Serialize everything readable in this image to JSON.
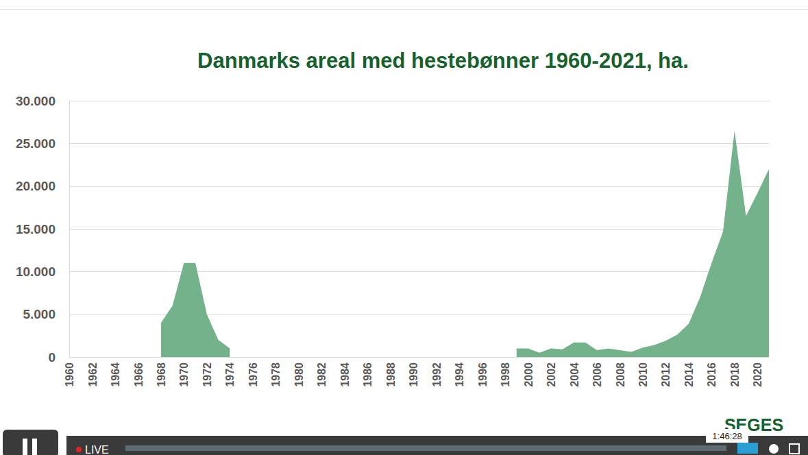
{
  "chart_data": {
    "type": "area",
    "title": "Danmarks areal med hestebønner 1960-2021, ha.",
    "x": [
      1960,
      1961,
      1962,
      1963,
      1964,
      1965,
      1966,
      1967,
      1968,
      1969,
      1970,
      1971,
      1972,
      1973,
      1974,
      1975,
      1976,
      1977,
      1978,
      1979,
      1980,
      1981,
      1982,
      1983,
      1984,
      1985,
      1986,
      1987,
      1988,
      1989,
      1990,
      1991,
      1992,
      1993,
      1994,
      1995,
      1996,
      1997,
      1998,
      1999,
      2000,
      2001,
      2002,
      2003,
      2004,
      2005,
      2006,
      2007,
      2008,
      2009,
      2010,
      2011,
      2012,
      2013,
      2014,
      2015,
      2016,
      2017,
      2018,
      2019,
      2020,
      2021
    ],
    "values": [
      null,
      null,
      null,
      null,
      null,
      null,
      null,
      null,
      4000,
      6000,
      11000,
      11000,
      5000,
      2000,
      1000,
      null,
      null,
      null,
      null,
      null,
      null,
      null,
      null,
      null,
      null,
      null,
      null,
      null,
      null,
      null,
      null,
      null,
      null,
      null,
      null,
      null,
      null,
      null,
      null,
      1000,
      1000,
      500,
      1000,
      900,
      1700,
      1700,
      800,
      1000,
      800,
      600,
      1100,
      1400,
      1900,
      2600,
      3900,
      7000,
      11000,
      14700,
      26500,
      16500,
      19200,
      22000
    ],
    "color": "#74b28b",
    "xlim": [
      1960,
      2021
    ],
    "ylim": [
      0,
      30000
    ],
    "xticks": [
      1960,
      1962,
      1964,
      1966,
      1968,
      1970,
      1972,
      1974,
      1976,
      1978,
      1980,
      1982,
      1984,
      1986,
      1988,
      1990,
      1992,
      1994,
      1996,
      1998,
      2000,
      2002,
      2004,
      2006,
      2008,
      2010,
      2012,
      2014,
      2016,
      2018,
      2020
    ],
    "yticks": [
      0,
      {
        "value": 5000,
        "label": "5.000"
      },
      {
        "value": 10000,
        "label": "10.000"
      },
      {
        "value": 15000,
        "label": "15.000"
      },
      {
        "value": 20000,
        "label": "20.000"
      },
      {
        "value": 25000,
        "label": "25.000"
      },
      {
        "value": 30000,
        "label": "30.000"
      }
    ],
    "grid": true,
    "annotations": [
      "SEGES",
      "LIVE",
      "1:46:28"
    ]
  }
}
